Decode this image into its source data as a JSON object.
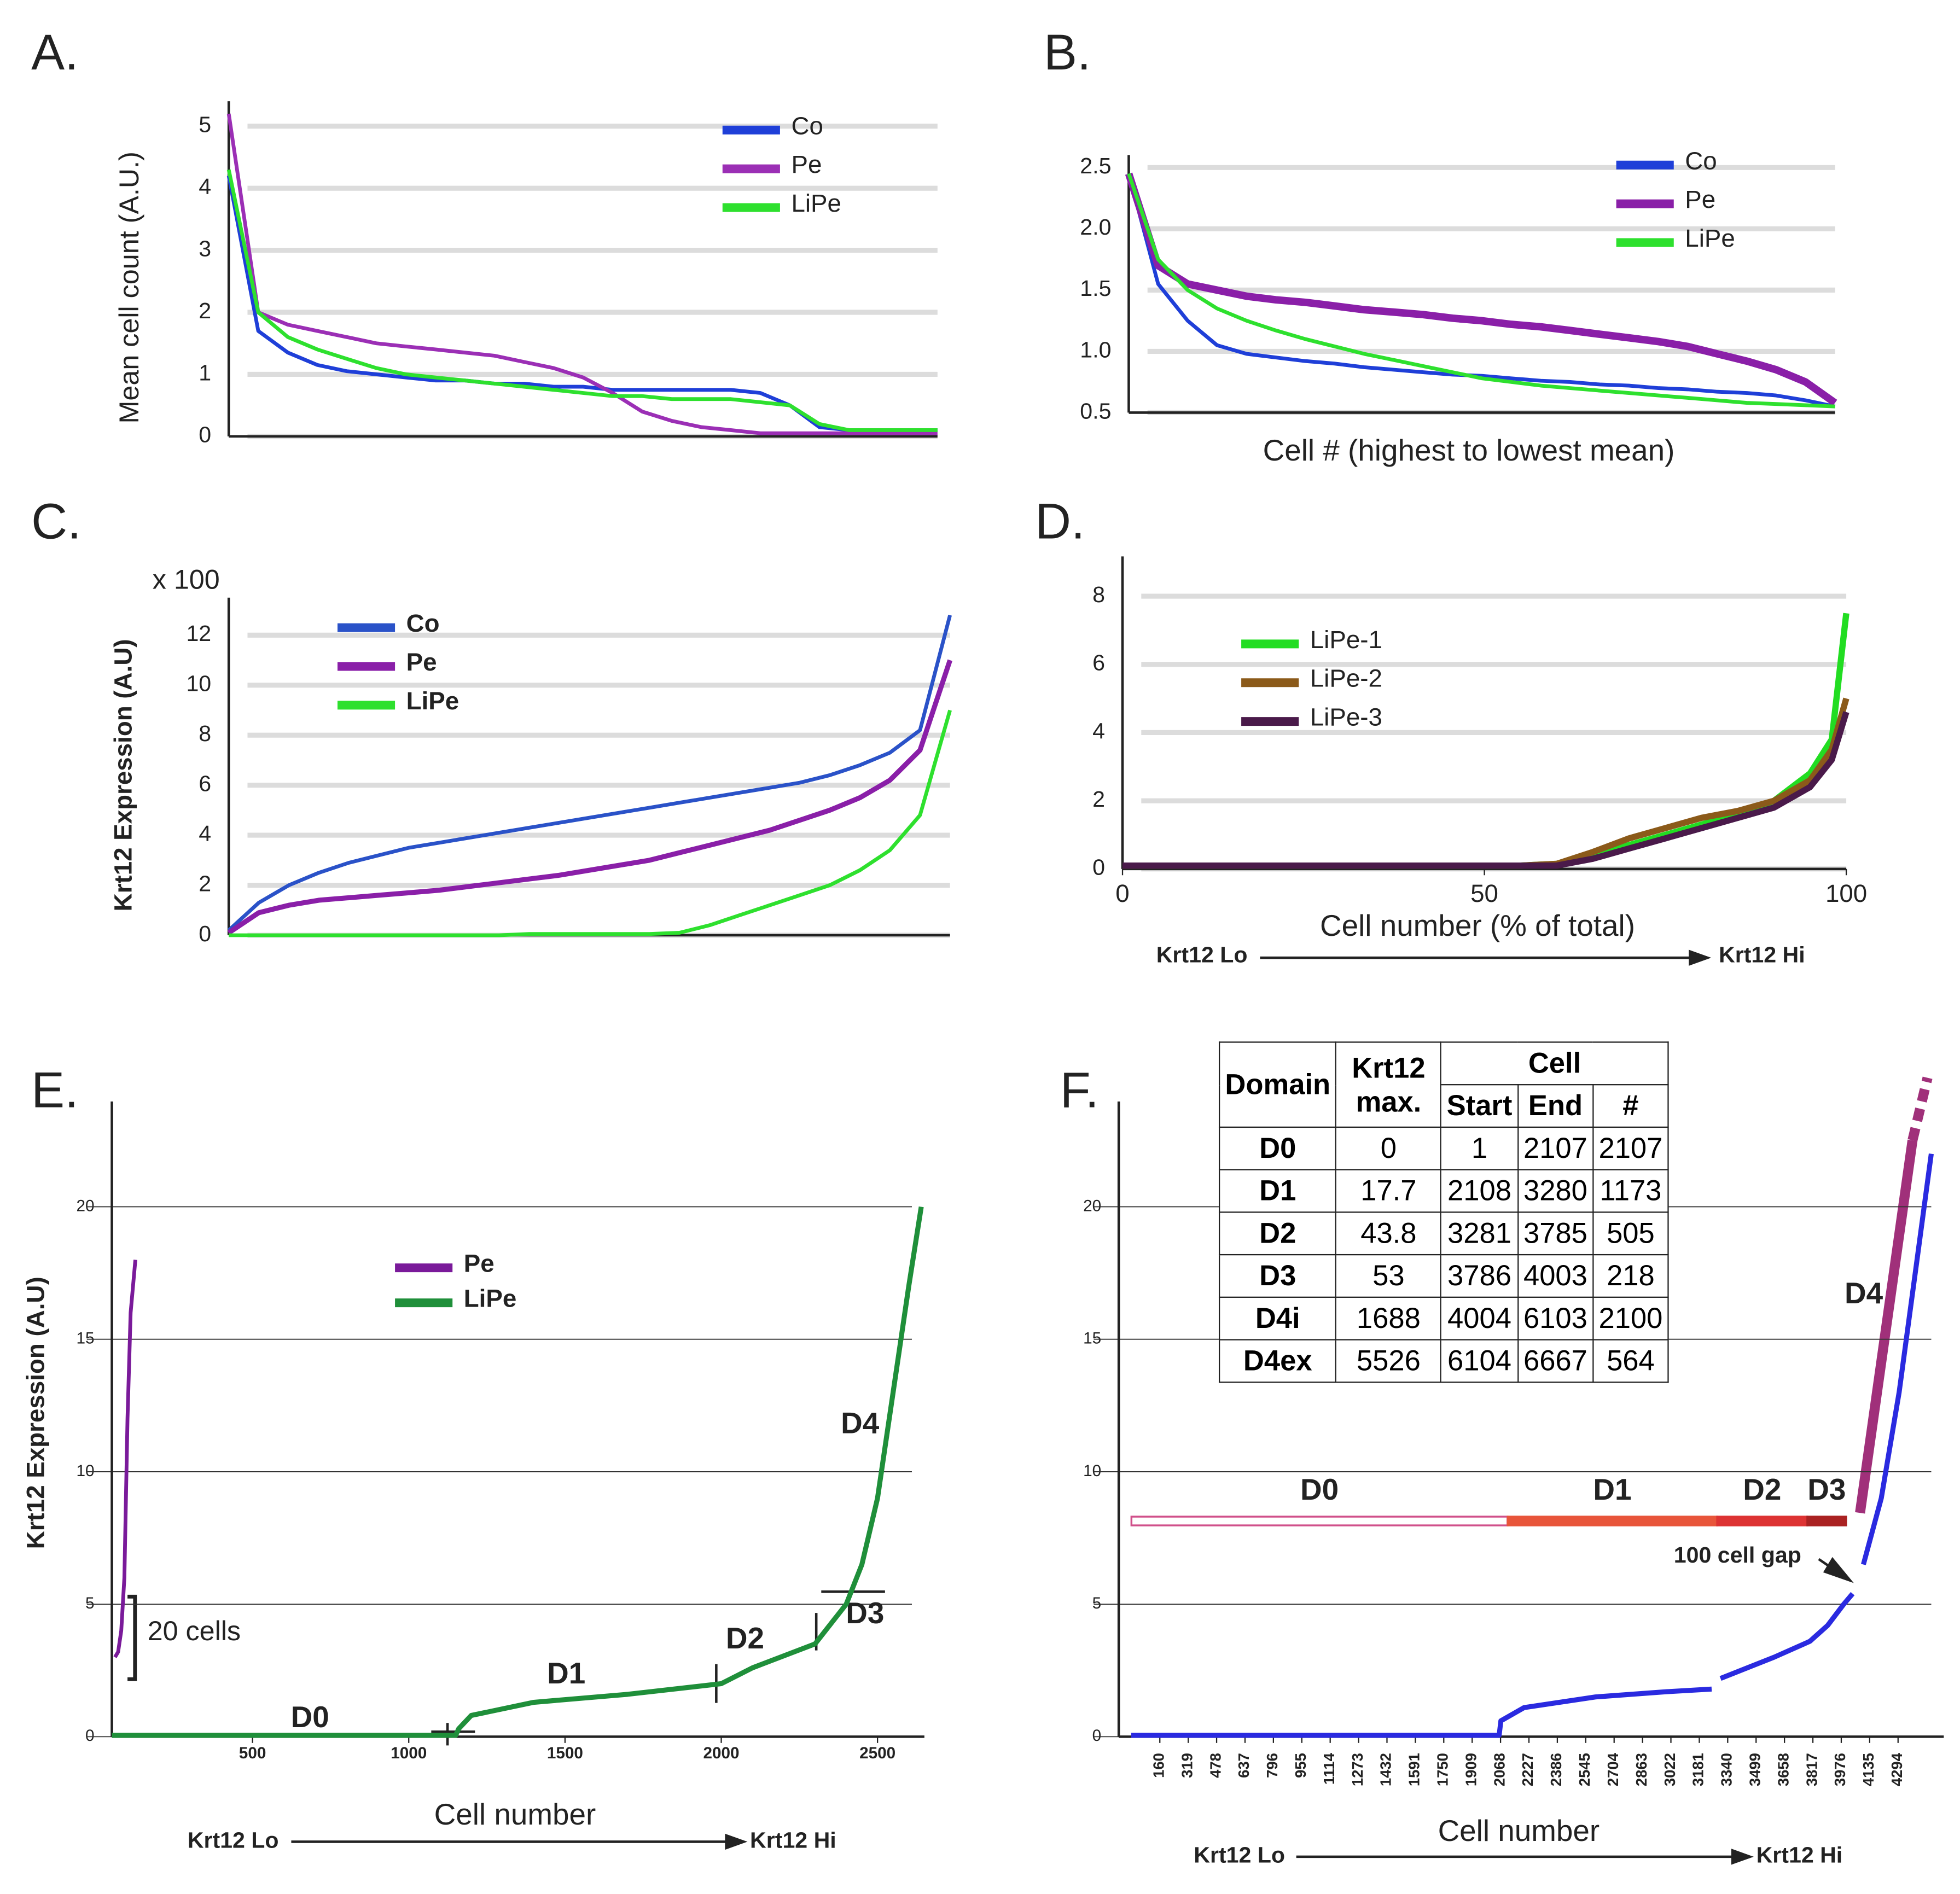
{
  "chart_data": [
    {
      "type": "line",
      "label": "A.",
      "ylabel": "Mean cell count (A.U.)",
      "ylim": [
        0,
        5.2
      ],
      "yticks": [
        0,
        1,
        2,
        3,
        4,
        5
      ],
      "grid": true,
      "series": [
        {
          "name": "Co",
          "color": "#1f3fd8",
          "values": [
            4.2,
            1.7,
            1.35,
            1.15,
            1.05,
            1.0,
            0.95,
            0.9,
            0.9,
            0.85,
            0.85,
            0.8,
            0.8,
            0.75,
            0.75,
            0.75,
            0.75,
            0.75,
            0.7,
            0.5,
            0.15,
            0.1,
            0.1,
            0.1,
            0.1
          ]
        },
        {
          "name": "Pe",
          "color": "#9b2fb5",
          "values": [
            5.2,
            2.0,
            1.8,
            1.7,
            1.6,
            1.5,
            1.45,
            1.4,
            1.35,
            1.3,
            1.2,
            1.1,
            0.95,
            0.7,
            0.4,
            0.25,
            0.15,
            0.1,
            0.05,
            0.05,
            0.05,
            0.05,
            0.05,
            0.05,
            0.05
          ]
        },
        {
          "name": "LiPe",
          "color": "#2ee02e",
          "values": [
            4.3,
            2.0,
            1.6,
            1.4,
            1.25,
            1.1,
            1.0,
            0.95,
            0.9,
            0.85,
            0.8,
            0.75,
            0.7,
            0.65,
            0.65,
            0.6,
            0.6,
            0.6,
            0.55,
            0.5,
            0.2,
            0.1,
            0.1,
            0.1,
            0.1
          ]
        }
      ]
    },
    {
      "type": "line",
      "label": "B.",
      "xlabel": "Cell # (highest to lowest mean)",
      "ylim": [
        0.5,
        2.5
      ],
      "yticks": [
        0.5,
        {
          "value": 1,
          "label": "1.0"
        },
        1.5,
        {
          "value": 2,
          "label": "2.0"
        },
        2.5
      ],
      "grid": true,
      "series": [
        {
          "name": "Co",
          "color": "#1f3fd8",
          "values": [
            2.45,
            1.55,
            1.25,
            1.05,
            0.98,
            0.95,
            0.92,
            0.9,
            0.87,
            0.85,
            0.83,
            0.81,
            0.8,
            0.78,
            0.76,
            0.75,
            0.73,
            0.72,
            0.7,
            0.69,
            0.67,
            0.66,
            0.64,
            0.6,
            0.55
          ]
        },
        {
          "name": "Pe",
          "color": "#8a1fa8",
          "values": [
            2.45,
            1.7,
            1.55,
            1.5,
            1.45,
            1.42,
            1.4,
            1.37,
            1.34,
            1.32,
            1.3,
            1.27,
            1.25,
            1.22,
            1.2,
            1.17,
            1.14,
            1.11,
            1.08,
            1.04,
            0.98,
            0.92,
            0.85,
            0.75,
            0.58
          ]
        },
        {
          "name": "LiPe",
          "color": "#2ee02e",
          "values": [
            2.45,
            1.75,
            1.5,
            1.35,
            1.25,
            1.17,
            1.1,
            1.04,
            0.98,
            0.93,
            0.88,
            0.83,
            0.78,
            0.75,
            0.72,
            0.7,
            0.68,
            0.66,
            0.64,
            0.62,
            0.6,
            0.58,
            0.57,
            0.56,
            0.55
          ]
        }
      ]
    },
    {
      "type": "line",
      "label": "C.",
      "ylabel": "Krt12 Expression (A.U)",
      "annotations": [
        "x 100"
      ],
      "ylim": [
        0,
        13
      ],
      "yticks": [
        0,
        2,
        4,
        6,
        8,
        10,
        12
      ],
      "grid": true,
      "series": [
        {
          "name": "Co",
          "color": "#2a52c8",
          "values": [
            0.2,
            1.3,
            2.0,
            2.5,
            2.9,
            3.2,
            3.5,
            3.7,
            3.9,
            4.1,
            4.3,
            4.5,
            4.7,
            4.9,
            5.1,
            5.3,
            5.5,
            5.7,
            5.9,
            6.1,
            6.4,
            6.8,
            7.3,
            8.2,
            12.8
          ]
        },
        {
          "name": "Pe",
          "color": "#8a1fa8",
          "values": [
            0.1,
            0.9,
            1.2,
            1.4,
            1.5,
            1.6,
            1.7,
            1.8,
            1.95,
            2.1,
            2.25,
            2.4,
            2.6,
            2.8,
            3.0,
            3.3,
            3.6,
            3.9,
            4.2,
            4.6,
            5.0,
            5.5,
            6.2,
            7.4,
            11
          ]
        },
        {
          "name": "LiPe",
          "color": "#2ee02e",
          "values": [
            0,
            0,
            0,
            0,
            0,
            0,
            0,
            0,
            0,
            0,
            0.05,
            0.05,
            0.05,
            0.05,
            0.05,
            0.1,
            0.4,
            0.8,
            1.2,
            1.6,
            2.0,
            2.6,
            3.4,
            4.8,
            9
          ]
        }
      ]
    },
    {
      "type": "line",
      "label": "D.",
      "xlabel": "Cell number (% of total)",
      "annotations": [
        "Krt12 Lo",
        "Krt12 Hi"
      ],
      "xlim": [
        0,
        100
      ],
      "xticks": [
        0,
        50,
        100
      ],
      "ylim": [
        0,
        8.8
      ],
      "yticks": [
        0,
        2,
        4,
        6,
        8
      ],
      "grid": true,
      "x": [
        0,
        10,
        20,
        30,
        40,
        50,
        55,
        60,
        65,
        70,
        75,
        80,
        85,
        90,
        95,
        98,
        100
      ],
      "series": [
        {
          "name": "LiPe-1",
          "color": "#22dd22",
          "values": [
            0.1,
            0.1,
            0.1,
            0.1,
            0.1,
            0.1,
            0.1,
            0.15,
            0.4,
            0.7,
            1.0,
            1.3,
            1.6,
            2.0,
            2.8,
            3.8,
            7.5
          ]
        },
        {
          "name": "LiPe-2",
          "color": "#8b5a1a",
          "values": [
            0.1,
            0.1,
            0.1,
            0.1,
            0.1,
            0.1,
            0.1,
            0.15,
            0.5,
            0.9,
            1.2,
            1.5,
            1.7,
            2.0,
            2.6,
            3.5,
            5
          ]
        },
        {
          "name": "LiPe-3",
          "color": "#4a1a4a",
          "values": [
            0.1,
            0.1,
            0.1,
            0.1,
            0.1,
            0.1,
            0.1,
            0.1,
            0.3,
            0.6,
            0.9,
            1.2,
            1.5,
            1.8,
            2.4,
            3.2,
            4.6
          ]
        }
      ]
    },
    {
      "type": "line",
      "label": "E.",
      "ylabel": "Krt12 Expression (A.U)",
      "xlabel": "Cell number",
      "annotations": [
        "D0",
        "D1",
        "D2",
        "D3",
        "D4",
        "20 cells",
        "Krt12 Lo",
        "Krt12 Hi"
      ],
      "xlim": [
        50,
        2650
      ],
      "xticks": [
        500,
        1000,
        1500,
        2000,
        2500
      ],
      "ylim": [
        0,
        23.5
      ],
      "yticks": [
        0,
        5,
        10,
        15,
        20
      ],
      "grid": true,
      "series": [
        {
          "name": "Pe",
          "color": "#7a1a9a",
          "x": [
            60,
            70,
            80,
            90,
            100,
            110,
            125
          ],
          "values": [
            3,
            3.2,
            4,
            6,
            12,
            16,
            18
          ]
        },
        {
          "name": "LiPe",
          "color": "#1f8f3a",
          "x": [
            50,
            1150,
            1160,
            1200,
            1400,
            1700,
            2000,
            2100,
            2300,
            2400,
            2450,
            2500,
            2550,
            2600,
            2640
          ],
          "values": [
            0.05,
            0.05,
            0.3,
            0.8,
            1.3,
            1.6,
            2.0,
            2.6,
            3.5,
            5.0,
            6.5,
            9,
            13,
            17,
            20
          ]
        }
      ]
    },
    {
      "type": "line",
      "label": "F.",
      "xlabel": "Cell number",
      "annotations": [
        "100 cell gap",
        "D4",
        "Krt12 Lo",
        "Krt12 Hi"
      ],
      "xlim": [
        -70,
        4550
      ],
      "xticks": [
        160,
        319,
        478,
        637,
        796,
        955,
        1114,
        1273,
        1432,
        1591,
        1750,
        1909,
        2068,
        2227,
        2386,
        2545,
        2704,
        2863,
        3022,
        3181,
        3340,
        3499,
        3658,
        3817,
        3976,
        4135,
        4294
      ],
      "ylim": [
        0,
        23.5
      ],
      "yticks": [
        0,
        5,
        10,
        15,
        20
      ],
      "grid": true,
      "series": [
        {
          "color": "#2a2ae0",
          "x": [
            0,
            2060,
            2070,
            2200,
            2600,
            3000,
            3250,
            3290,
            3300,
            3600,
            3800,
            3900,
            3990,
            4040,
            4060,
            4100,
            4200,
            4300,
            4400,
            4480
          ],
          "values": [
            0.05,
            0.05,
            0.6,
            1.1,
            1.5,
            1.7,
            1.8,
            null,
            2.2,
            3.0,
            3.6,
            4.2,
            5.0,
            5.4,
            null,
            6.5,
            9,
            13,
            18,
            22
          ]
        }
      ],
      "domain_colors": [
        "#ffffff",
        "#e8553a",
        "#dd3333",
        "#aa2222"
      ],
      "table": {
        "columns": [
          "Domain",
          "Krt12 max.",
          "Cell",
          "Start",
          "End",
          "#"
        ],
        "rows": [
          [
            "D0",
            0,
            1,
            2107,
            2107
          ],
          [
            "D1",
            17.7,
            2108,
            3280,
            1173
          ],
          [
            "D2",
            43.8,
            3281,
            3785,
            505
          ],
          [
            "D3",
            53,
            3786,
            4003,
            218
          ],
          [
            "D4i",
            1688,
            4004,
            6103,
            2100
          ],
          [
            "D4ex",
            5526,
            6104,
            6667,
            564
          ]
        ]
      }
    }
  ]
}
